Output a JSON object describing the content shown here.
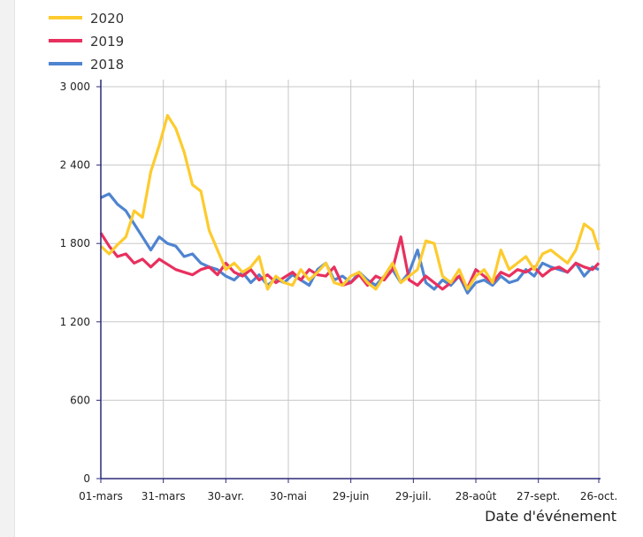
{
  "chart_data": {
    "type": "line",
    "xlabel": "Date d'événement",
    "ylabel": "",
    "ylim": [
      0,
      3000
    ],
    "yticks": [
      0,
      600,
      1200,
      1800,
      2400,
      3000
    ],
    "ytick_labels": [
      "0",
      "600",
      "1 200",
      "1 800",
      "2 400",
      "3 000"
    ],
    "xticks": [
      "03-01",
      "03-31",
      "04-30",
      "05-30",
      "06-29",
      "07-29",
      "08-28",
      "09-27",
      "10-26"
    ],
    "xtick_labels": [
      "01-mars",
      "31-mars",
      "30-avr.",
      "30-mai",
      "29-juin",
      "29-juil.",
      "28-août",
      "27-sept.",
      "26-oct."
    ],
    "grid": true,
    "legend_placement": "top-left",
    "x": [
      "03-01",
      "03-05",
      "03-09",
      "03-13",
      "03-17",
      "03-21",
      "03-25",
      "03-29",
      "04-02",
      "04-06",
      "04-10",
      "04-14",
      "04-18",
      "04-22",
      "04-26",
      "04-30",
      "05-04",
      "05-08",
      "05-12",
      "05-16",
      "05-20",
      "05-24",
      "05-28",
      "06-01",
      "06-05",
      "06-09",
      "06-13",
      "06-17",
      "06-21",
      "06-25",
      "06-29",
      "07-03",
      "07-07",
      "07-11",
      "07-15",
      "07-19",
      "07-23",
      "07-27",
      "07-31",
      "08-04",
      "08-08",
      "08-12",
      "08-16",
      "08-20",
      "08-24",
      "08-28",
      "09-01",
      "09-05",
      "09-09",
      "09-13",
      "09-17",
      "09-21",
      "09-25",
      "09-29",
      "10-03",
      "10-07",
      "10-11",
      "10-15",
      "10-19",
      "10-23",
      "10-26"
    ],
    "series": [
      {
        "name": "2020",
        "color": "#fdcb2e",
        "values": [
          1780,
          1720,
          1790,
          1850,
          2050,
          2000,
          2350,
          2550,
          2780,
          2680,
          2500,
          2250,
          2200,
          1900,
          1750,
          1600,
          1650,
          1580,
          1620,
          1700,
          1450,
          1550,
          1500,
          1480,
          1600,
          1520,
          1580,
          1650,
          1500,
          1480,
          1550,
          1580,
          1500,
          1450,
          1550,
          1650,
          1500,
          1550,
          1600,
          1820,
          1800,
          1550,
          1500,
          1600,
          1450,
          1550,
          1600,
          1500,
          1750,
          1600,
          1650,
          1700,
          1600,
          1720,
          1750,
          1700,
          1650,
          1750,
          1950,
          1900,
          1750
        ]
      },
      {
        "name": "2019",
        "color": "#e8305e",
        "values": [
          1880,
          1780,
          1700,
          1720,
          1650,
          1680,
          1620,
          1680,
          1640,
          1600,
          1580,
          1560,
          1600,
          1620,
          1560,
          1650,
          1580,
          1550,
          1600,
          1520,
          1560,
          1500,
          1540,
          1580,
          1520,
          1600,
          1560,
          1550,
          1620,
          1480,
          1500,
          1560,
          1480,
          1550,
          1520,
          1600,
          1850,
          1520,
          1480,
          1550,
          1500,
          1450,
          1500,
          1550,
          1460,
          1600,
          1550,
          1500,
          1580,
          1550,
          1600,
          1580,
          1620,
          1550,
          1600,
          1620,
          1580,
          1650,
          1620,
          1600,
          1650
        ]
      },
      {
        "name": "2018",
        "color": "#4f84d0",
        "values": [
          2150,
          2180,
          2100,
          2050,
          1950,
          1850,
          1750,
          1850,
          1800,
          1780,
          1700,
          1720,
          1650,
          1620,
          1600,
          1550,
          1520,
          1580,
          1500,
          1560,
          1480,
          1530,
          1500,
          1560,
          1520,
          1480,
          1600,
          1650,
          1520,
          1550,
          1500,
          1580,
          1520,
          1480,
          1550,
          1600,
          1500,
          1580,
          1750,
          1500,
          1450,
          1520,
          1480,
          1550,
          1420,
          1500,
          1520,
          1480,
          1550,
          1500,
          1520,
          1600,
          1550,
          1650,
          1620,
          1600,
          1580,
          1650,
          1550,
          1620,
          1600
        ]
      }
    ]
  }
}
